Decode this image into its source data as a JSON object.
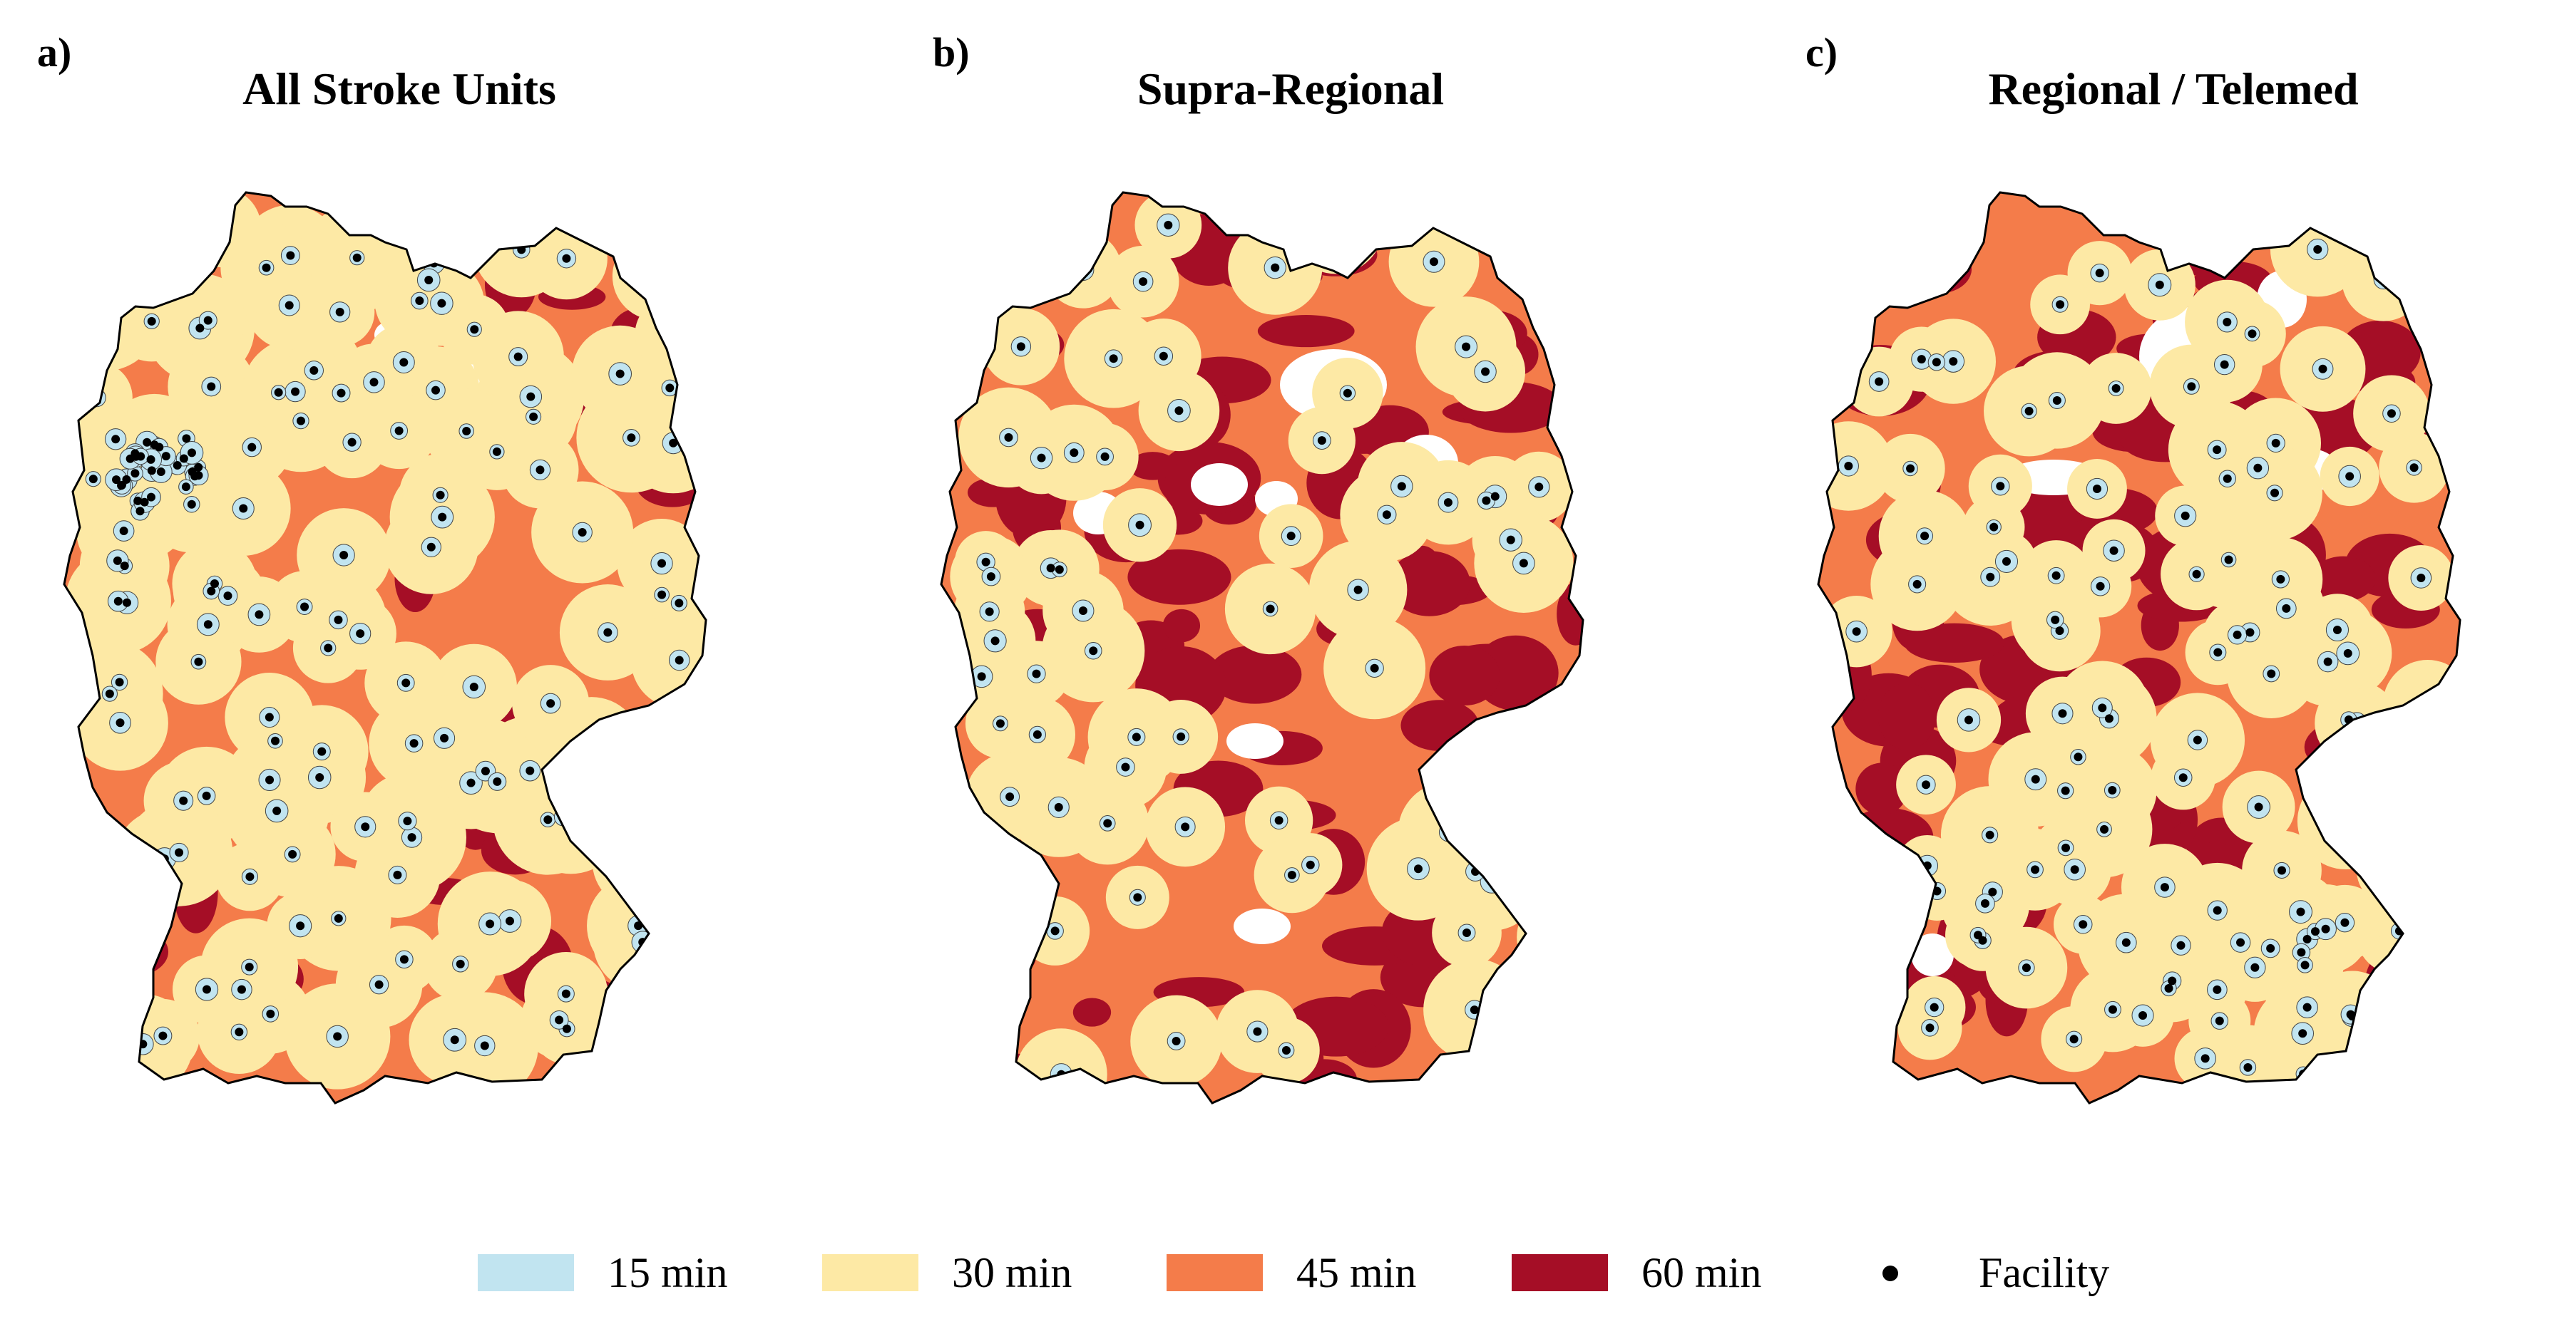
{
  "panels": [
    {
      "letter": "a)",
      "title": "All Stroke Units",
      "variant": "all"
    },
    {
      "letter": "b)",
      "title": "Supra-Regional",
      "variant": "supra"
    },
    {
      "letter": "c)",
      "title": "Regional / Telemed",
      "variant": "regional"
    }
  ],
  "legend": {
    "items": [
      {
        "label": "15 min",
        "color": "#c1e4f0"
      },
      {
        "label": "30 min",
        "color": "#fde9a5"
      },
      {
        "label": "45 min",
        "color": "#f47c4a"
      },
      {
        "label": "60 min",
        "color": "#a50e26"
      }
    ],
    "facility_label": "Facility"
  },
  "colors": {
    "min15": "#c1e4f0",
    "min30": "#fde9a5",
    "min45": "#f47c4a",
    "min60": "#a50e26",
    "outside": "#ffffff",
    "facility": "#000000",
    "border": "#000000"
  }
}
